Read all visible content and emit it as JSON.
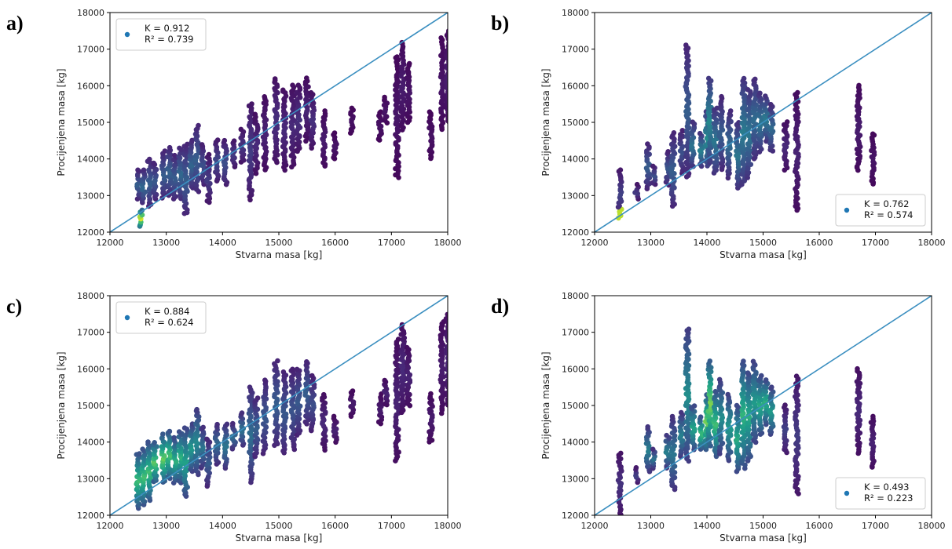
{
  "chart_data": [
    {
      "type": "scatter",
      "panel_label": "a)",
      "xlabel": "Stvarna masa [kg]",
      "ylabel": "Procijenjena masa [kg]",
      "xlim": [
        12000,
        18000
      ],
      "ylim": [
        12000,
        18000
      ],
      "xticks": [
        12000,
        13000,
        14000,
        15000,
        16000,
        17000,
        18000
      ],
      "yticks": [
        12000,
        13000,
        14000,
        15000,
        16000,
        17000,
        18000
      ],
      "grid": false,
      "legend_position": "top-left",
      "legend": [
        "K = 0.912",
        "R² = 0.739"
      ],
      "reference_line": {
        "from": [
          12000,
          12000
        ],
        "to": [
          18000,
          18000
        ]
      },
      "columns": [
        [
          12500,
          12900,
          13700,
          0.3,
          0.85
        ],
        [
          12550,
          12150,
          12600,
          0.98,
          0.0
        ],
        [
          12600,
          12800,
          13700,
          0.35,
          0.0
        ],
        [
          12700,
          12700,
          14000,
          0.3,
          0.3
        ],
        [
          12800,
          12900,
          13900,
          0.28,
          0.0
        ],
        [
          12950,
          12950,
          14200,
          0.3,
          0.0
        ],
        [
          13050,
          13000,
          14300,
          0.32,
          0.0
        ],
        [
          13150,
          12900,
          14100,
          0.3,
          0.0
        ],
        [
          13250,
          12900,
          14300,
          0.34,
          0.0
        ],
        [
          13350,
          12500,
          14400,
          0.3,
          0.0
        ],
        [
          13450,
          13200,
          14500,
          0.33,
          0.0
        ],
        [
          13550,
          13100,
          14900,
          0.3,
          0.0
        ],
        [
          13650,
          13300,
          14400,
          0.25,
          0.0
        ],
        [
          13750,
          12800,
          14100,
          0.18,
          0.0
        ],
        [
          13900,
          13400,
          14500,
          0.22,
          0.0
        ],
        [
          14050,
          13300,
          14500,
          0.24,
          0.0
        ],
        [
          14200,
          13800,
          14500,
          0.18,
          0.0
        ],
        [
          14350,
          13900,
          14800,
          0.16,
          0.0
        ],
        [
          14500,
          12900,
          15500,
          0.18,
          0.0
        ],
        [
          14600,
          13600,
          15200,
          0.12,
          0.0
        ],
        [
          14750,
          13700,
          15700,
          0.1,
          0.0
        ],
        [
          14950,
          13900,
          16200,
          0.14,
          0.0
        ],
        [
          15100,
          13700,
          15900,
          0.12,
          0.0
        ],
        [
          15250,
          13800,
          16000,
          0.12,
          0.0
        ],
        [
          15350,
          14200,
          16000,
          0.14,
          0.0
        ],
        [
          15500,
          14500,
          16200,
          0.1,
          0.0
        ],
        [
          15600,
          14300,
          15800,
          0.14,
          0.0
        ],
        [
          15800,
          13800,
          15300,
          0.08,
          0.0
        ],
        [
          16000,
          14000,
          14700,
          0.06,
          0.0
        ],
        [
          16300,
          14700,
          15400,
          0.05,
          0.0
        ],
        [
          16800,
          14500,
          15300,
          0.05,
          0.0
        ],
        [
          16900,
          15000,
          15700,
          0.06,
          0.0
        ],
        [
          17100,
          13500,
          16800,
          0.06,
          0.0
        ],
        [
          17200,
          14800,
          17200,
          0.08,
          0.0
        ],
        [
          17300,
          15000,
          16600,
          0.06,
          0.0
        ],
        [
          17700,
          14000,
          15300,
          0.05,
          0.0
        ],
        [
          17900,
          14800,
          17300,
          0.06,
          0.0
        ],
        [
          18000,
          15000,
          17500,
          0.08,
          0.0
        ]
      ]
    },
    {
      "type": "scatter",
      "panel_label": "b)",
      "xlabel": "Stvarna masa [kg]",
      "ylabel": "Procijenjena masa [kg]",
      "xlim": [
        12000,
        18000
      ],
      "ylim": [
        12000,
        18000
      ],
      "xticks": [
        12000,
        13000,
        14000,
        15000,
        16000,
        17000,
        18000
      ],
      "yticks": [
        12000,
        13000,
        14000,
        15000,
        16000,
        17000,
        18000
      ],
      "grid": false,
      "legend_position": "bottom-right",
      "legend": [
        "K = 0.762",
        "R² = 0.574"
      ],
      "reference_line": {
        "from": [
          12000,
          12000
        ],
        "to": [
          18000,
          18000
        ]
      },
      "columns": [
        [
          12450,
          12400,
          13700,
          0.2,
          0.9
        ],
        [
          12750,
          12900,
          13300,
          0.18,
          0.0
        ],
        [
          12950,
          13200,
          14400,
          0.3,
          0.0
        ],
        [
          13050,
          13300,
          13800,
          0.25,
          0.0
        ],
        [
          13300,
          13300,
          14200,
          0.28,
          0.0
        ],
        [
          13400,
          12700,
          14700,
          0.3,
          0.0
        ],
        [
          13550,
          13600,
          14800,
          0.25,
          0.0
        ],
        [
          13650,
          13500,
          17100,
          0.3,
          0.0
        ],
        [
          13750,
          13800,
          15000,
          0.4,
          0.0
        ],
        [
          13900,
          13800,
          14700,
          0.45,
          0.0
        ],
        [
          14000,
          13800,
          15300,
          0.5,
          0.0
        ],
        [
          14050,
          13900,
          16200,
          0.48,
          0.0
        ],
        [
          14150,
          13600,
          15400,
          0.4,
          0.0
        ],
        [
          14250,
          13700,
          15700,
          0.3,
          0.0
        ],
        [
          14400,
          13500,
          15300,
          0.35,
          0.0
        ],
        [
          14550,
          13200,
          15000,
          0.4,
          0.0
        ],
        [
          14650,
          13300,
          16200,
          0.42,
          0.0
        ],
        [
          14750,
          13500,
          15900,
          0.4,
          0.0
        ],
        [
          14850,
          14000,
          16200,
          0.35,
          0.0
        ],
        [
          14950,
          14200,
          15800,
          0.4,
          0.0
        ],
        [
          15050,
          14500,
          15700,
          0.42,
          0.0
        ],
        [
          15150,
          14200,
          15500,
          0.35,
          0.0
        ],
        [
          15400,
          13700,
          15000,
          0.12,
          0.0
        ],
        [
          15600,
          12600,
          15800,
          0.1,
          0.0
        ],
        [
          16700,
          13700,
          16000,
          0.08,
          0.0
        ],
        [
          16950,
          13300,
          14700,
          0.06,
          0.0
        ]
      ]
    },
    {
      "type": "scatter",
      "panel_label": "c)",
      "xlabel": "Stvarna masa [kg]",
      "ylabel": "Procijenjena masa [kg]",
      "xlim": [
        12000,
        18000
      ],
      "ylim": [
        12000,
        18000
      ],
      "xticks": [
        12000,
        13000,
        14000,
        15000,
        16000,
        17000,
        18000
      ],
      "yticks": [
        12000,
        13000,
        14000,
        15000,
        16000,
        17000,
        18000
      ],
      "grid": false,
      "legend_position": "top-left",
      "legend": [
        "K = 0.884",
        "R² = 0.624"
      ],
      "reference_line": {
        "from": [
          12000,
          12000
        ],
        "to": [
          18000,
          18000
        ]
      },
      "columns": [
        [
          12500,
          12200,
          13700,
          0.7,
          0.0
        ],
        [
          12600,
          12300,
          13800,
          0.72,
          0.0
        ],
        [
          12700,
          12400,
          14000,
          0.7,
          0.0
        ],
        [
          12800,
          12900,
          14000,
          0.75,
          0.0
        ],
        [
          12950,
          12900,
          14200,
          0.78,
          0.0
        ],
        [
          13050,
          13000,
          14300,
          0.72,
          0.0
        ],
        [
          13150,
          12900,
          14100,
          0.65,
          0.0
        ],
        [
          13250,
          12900,
          14300,
          0.65,
          0.0
        ],
        [
          13350,
          12500,
          14400,
          0.58,
          0.0
        ],
        [
          13450,
          13200,
          14500,
          0.55,
          0.0
        ],
        [
          13550,
          13100,
          14900,
          0.48,
          0.0
        ],
        [
          13650,
          13300,
          14400,
          0.4,
          0.0
        ],
        [
          13750,
          12800,
          14100,
          0.3,
          0.0
        ],
        [
          13900,
          13400,
          14500,
          0.35,
          0.0
        ],
        [
          14050,
          13300,
          14500,
          0.4,
          0.0
        ],
        [
          14200,
          13800,
          14500,
          0.35,
          0.0
        ],
        [
          14350,
          13900,
          14800,
          0.38,
          0.0
        ],
        [
          14500,
          12900,
          15500,
          0.36,
          0.0
        ],
        [
          14600,
          13600,
          15200,
          0.3,
          0.0
        ],
        [
          14750,
          13700,
          15700,
          0.28,
          0.0
        ],
        [
          14950,
          13900,
          16200,
          0.3,
          0.0
        ],
        [
          15100,
          13700,
          15900,
          0.28,
          0.0
        ],
        [
          15250,
          13800,
          16000,
          0.26,
          0.0
        ],
        [
          15350,
          14200,
          16000,
          0.28,
          0.0
        ],
        [
          15500,
          14500,
          16200,
          0.3,
          0.0
        ],
        [
          15600,
          14300,
          15800,
          0.24,
          0.0
        ],
        [
          15800,
          13800,
          15300,
          0.12,
          0.0
        ],
        [
          16000,
          14000,
          14700,
          0.1,
          0.0
        ],
        [
          16300,
          14700,
          15400,
          0.08,
          0.0
        ],
        [
          16800,
          14500,
          15300,
          0.08,
          0.0
        ],
        [
          16900,
          15000,
          15700,
          0.1,
          0.0
        ],
        [
          17100,
          13500,
          16800,
          0.1,
          0.0
        ],
        [
          17200,
          14800,
          17200,
          0.12,
          0.0
        ],
        [
          17300,
          15000,
          16600,
          0.1,
          0.0
        ],
        [
          17700,
          14000,
          15300,
          0.08,
          0.0
        ],
        [
          17900,
          14800,
          17300,
          0.08,
          0.0
        ],
        [
          18000,
          15000,
          17500,
          0.1,
          0.0
        ]
      ]
    },
    {
      "type": "scatter",
      "panel_label": "d)",
      "xlabel": "Stvarna masa [kg]",
      "ylabel": "Procijenjena masa [kg]",
      "xlim": [
        12000,
        18000
      ],
      "ylim": [
        12000,
        18000
      ],
      "xticks": [
        12000,
        13000,
        14000,
        15000,
        16000,
        17000,
        18000
      ],
      "yticks": [
        12000,
        13000,
        14000,
        15000,
        16000,
        17000,
        18000
      ],
      "grid": false,
      "legend_position": "bottom-right",
      "legend": [
        "K = 0.493",
        "R² = 0.223"
      ],
      "reference_line": {
        "from": [
          12000,
          12000
        ],
        "to": [
          18000,
          18000
        ]
      },
      "columns": [
        [
          12450,
          12000,
          13700,
          0.15,
          0.0
        ],
        [
          12750,
          12900,
          13300,
          0.2,
          0.0
        ],
        [
          12950,
          13200,
          14400,
          0.45,
          0.0
        ],
        [
          13050,
          13300,
          13800,
          0.4,
          0.0
        ],
        [
          13300,
          13300,
          14200,
          0.45,
          0.0
        ],
        [
          13400,
          12700,
          14700,
          0.4,
          0.0
        ],
        [
          13550,
          13600,
          14800,
          0.45,
          0.0
        ],
        [
          13650,
          13500,
          17100,
          0.5,
          0.0
        ],
        [
          13750,
          13800,
          15000,
          0.6,
          0.0
        ],
        [
          13900,
          13800,
          14700,
          0.7,
          0.0
        ],
        [
          14000,
          13800,
          15300,
          0.8,
          0.0
        ],
        [
          14050,
          13900,
          16200,
          0.82,
          0.0
        ],
        [
          14150,
          13600,
          15400,
          0.7,
          0.0
        ],
        [
          14250,
          13700,
          15700,
          0.5,
          0.0
        ],
        [
          14400,
          13500,
          15300,
          0.55,
          0.0
        ],
        [
          14550,
          13200,
          15000,
          0.62,
          0.0
        ],
        [
          14650,
          13300,
          16200,
          0.66,
          0.0
        ],
        [
          14750,
          13500,
          15900,
          0.62,
          0.0
        ],
        [
          14850,
          14000,
          16200,
          0.55,
          0.0
        ],
        [
          14950,
          14200,
          15800,
          0.62,
          0.0
        ],
        [
          15050,
          14500,
          15700,
          0.64,
          0.0
        ],
        [
          15150,
          14200,
          15500,
          0.55,
          0.0
        ],
        [
          15400,
          13700,
          15000,
          0.2,
          0.0
        ],
        [
          15600,
          12600,
          15800,
          0.18,
          0.0
        ],
        [
          16700,
          13700,
          16000,
          0.12,
          0.0
        ],
        [
          16950,
          13300,
          14700,
          0.1,
          0.0
        ]
      ]
    }
  ]
}
